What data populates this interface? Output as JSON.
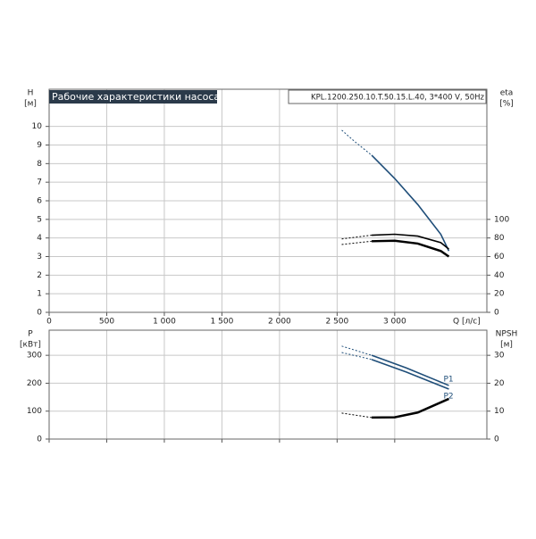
{
  "chart_data": [
    {
      "type": "line",
      "title": "Рабочие характеристики насоса",
      "subtitle": "KPL.1200.250.10.T.50.15.L.40, 3*400 V, 50Hz",
      "ylabel": "H",
      "yunit": "[м]",
      "y2label": "eta",
      "y2unit": "[%]",
      "xlabel": "Q [л/с]",
      "xlim": [
        0,
        3800
      ],
      "xticks": [
        0,
        500,
        {
          "value": 1000,
          "label": "1 000"
        },
        {
          "value": 1500,
          "label": "1 500"
        },
        {
          "value": 2000,
          "label": "2 000"
        },
        {
          "value": 2500,
          "label": "2 500"
        },
        {
          "value": 3000,
          "label": "3 000"
        }
      ],
      "ylim": [
        0,
        12
      ],
      "yticks": [
        0,
        1,
        2,
        3,
        4,
        5,
        6,
        7,
        8,
        9,
        10
      ],
      "y2lim": [
        0,
        240
      ],
      "y2ticks": [
        0,
        20,
        40,
        60,
        80,
        100
      ],
      "grid": true,
      "xtick_labels": true,
      "series": [
        {
          "color": "#1f4e79",
          "style": "dashed",
          "x": [
            2540,
            2650,
            2800
          ],
          "values": [
            9.8,
            9.2,
            8.45
          ]
        },
        {
          "color": "#1f4e79",
          "style": "solid",
          "x": [
            2800,
            3000,
            3200,
            3400,
            3470
          ],
          "values": [
            8.45,
            7.2,
            5.8,
            4.2,
            3.3
          ]
        },
        {
          "color": "#000000",
          "style": "dashed",
          "axis": "y2",
          "x": [
            2540,
            2800
          ],
          "values": [
            79,
            83
          ]
        },
        {
          "color": "#000000",
          "style": "solid",
          "axis": "y2",
          "x": [
            2800,
            3000,
            3200,
            3400,
            3470
          ],
          "values": [
            83,
            84,
            82,
            75,
            68
          ]
        },
        {
          "color": "#000000",
          "style": "dashed",
          "axis": "y2",
          "x": [
            2540,
            2800
          ],
          "values": [
            73,
            76.5
          ]
        },
        {
          "color": "#000000",
          "style": "solid",
          "width": 2.5,
          "axis": "y2",
          "x": [
            2800,
            3000,
            3200,
            3400,
            3470
          ],
          "values": [
            76.5,
            77,
            74,
            66,
            60
          ]
        }
      ]
    },
    {
      "type": "line",
      "ylabel": "P",
      "yunit": "[кВт]",
      "y2label": "NPSH",
      "y2unit": "[м]",
      "xlim": [
        0,
        3800
      ],
      "xticks": [
        0,
        500,
        1000,
        1500,
        2000,
        2500,
        3000
      ],
      "xtick_labels": false,
      "ylim": [
        0,
        390
      ],
      "yticks": [
        0,
        100,
        200,
        300
      ],
      "y2lim": [
        0,
        39
      ],
      "y2ticks": [
        0,
        10,
        20,
        30
      ],
      "grid": true,
      "series": [
        {
          "color": "#1f4e79",
          "style": "dashed",
          "x": [
            2540,
            2800
          ],
          "values": [
            333,
            300
          ]
        },
        {
          "name": "P1",
          "color": "#1f4e79",
          "style": "solid",
          "x": [
            2800,
            3100,
            3470
          ],
          "values": [
            300,
            255,
            192
          ]
        },
        {
          "color": "#1f4e79",
          "style": "dashed",
          "x": [
            2540,
            2800
          ],
          "values": [
            310,
            285
          ]
        },
        {
          "name": "P2",
          "color": "#1f4e79",
          "style": "solid",
          "x": [
            2800,
            3100,
            3470
          ],
          "values": [
            285,
            240,
            179
          ]
        },
        {
          "color": "#000000",
          "style": "dashed",
          "axis": "y2",
          "x": [
            2540,
            2800
          ],
          "values": [
            9.3,
            7.7
          ]
        },
        {
          "color": "#000000",
          "style": "solid",
          "width": 2.5,
          "axis": "y2",
          "x": [
            2800,
            3000,
            3200,
            3470
          ],
          "values": [
            7.7,
            7.8,
            9.5,
            14.4
          ]
        }
      ]
    }
  ]
}
